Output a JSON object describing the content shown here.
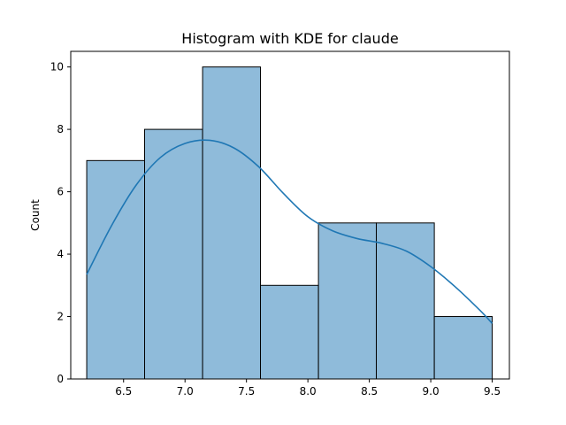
{
  "chart_data": {
    "type": "bar",
    "title": "Histogram with KDE for claude",
    "xlabel": "",
    "ylabel": "Count",
    "xlim": [
      6.07,
      9.64
    ],
    "ylim": [
      0,
      10.5
    ],
    "xticks": [
      6.5,
      7.0,
      7.5,
      8.0,
      8.5,
      9.0,
      9.5
    ],
    "xtick_labels": [
      "6.5",
      "7.0",
      "7.5",
      "8.0",
      "8.5",
      "9.0",
      "9.5"
    ],
    "yticks": [
      0,
      2,
      4,
      6,
      8,
      10
    ],
    "ytick_labels": [
      "0",
      "2",
      "4",
      "6",
      "8",
      "10"
    ],
    "bins": [
      {
        "x0": 6.2,
        "x1": 6.671,
        "count": 7
      },
      {
        "x0": 6.671,
        "x1": 7.143,
        "count": 8
      },
      {
        "x0": 7.143,
        "x1": 7.614,
        "count": 10
      },
      {
        "x0": 7.614,
        "x1": 8.086,
        "count": 3
      },
      {
        "x0": 8.086,
        "x1": 8.557,
        "count": 5
      },
      {
        "x0": 8.557,
        "x1": 9.029,
        "count": 5
      },
      {
        "x0": 9.029,
        "x1": 9.5,
        "count": 2
      }
    ],
    "kde": {
      "x": [
        6.2,
        6.4,
        6.6,
        6.8,
        7.0,
        7.2,
        7.4,
        7.6,
        7.8,
        8.0,
        8.2,
        8.4,
        8.6,
        8.8,
        9.0,
        9.2,
        9.4,
        9.5
      ],
      "y": [
        3.35,
        4.9,
        6.2,
        7.1,
        7.55,
        7.65,
        7.4,
        6.8,
        5.95,
        5.2,
        4.75,
        4.5,
        4.35,
        4.1,
        3.6,
        2.95,
        2.2,
        1.78
      ]
    },
    "bar_color": "#8fbbda",
    "bar_edge_color": "#000000",
    "kde_color": "#1f77b4",
    "grid": false
  }
}
